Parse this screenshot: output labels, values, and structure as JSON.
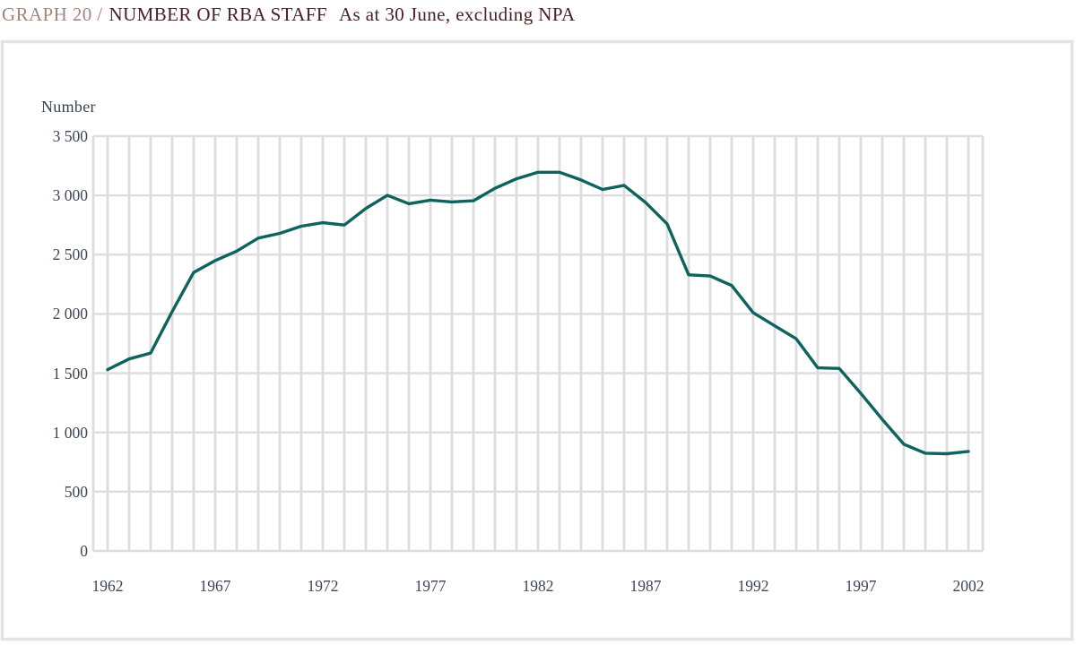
{
  "header": {
    "graph_label": "GRAPH 20 /",
    "title": "NUMBER OF RBA STAFF",
    "subtitle": "As at 30 June, excluding NPA"
  },
  "chart_data": {
    "type": "line",
    "title": "GRAPH 20 / NUMBER OF RBA STAFF  As at 30 June, excluding NPA",
    "ylabel": "Number",
    "ylim": [
      0,
      3500
    ],
    "y_ticks": [
      {
        "value": 3500,
        "label": "3 500"
      },
      {
        "value": 3000,
        "label": "3 000"
      },
      {
        "value": 2500,
        "label": "2 500"
      },
      {
        "value": 2000,
        "label": "2 000"
      },
      {
        "value": 1500,
        "label": "1 500"
      },
      {
        "value": 1000,
        "label": "1 000"
      },
      {
        "value": 500,
        "label": "500"
      },
      {
        "value": 0,
        "label": "0"
      }
    ],
    "x_ticks": [
      1962,
      1967,
      1972,
      1977,
      1982,
      1987,
      1992,
      1997,
      2002
    ],
    "grid": {
      "vertical": "every year",
      "horizontal": "every 500",
      "color": "#dcdce1"
    },
    "legend": "none",
    "series": [
      {
        "name": "Number of RBA staff",
        "x": [
          1962,
          1963,
          1964,
          1965,
          1966,
          1967,
          1968,
          1969,
          1970,
          1971,
          1972,
          1973,
          1974,
          1975,
          1976,
          1977,
          1978,
          1979,
          1980,
          1981,
          1982,
          1983,
          1984,
          1985,
          1986,
          1987,
          1988,
          1989,
          1990,
          1991,
          1992,
          1993,
          1994,
          1995,
          1996,
          1997,
          1998,
          1999,
          2000,
          2001,
          2002
        ],
        "values": [
          1530,
          1620,
          1670,
          2020,
          2350,
          2450,
          2530,
          2640,
          2680,
          2740,
          2770,
          2750,
          2890,
          3000,
          2930,
          2960,
          2945,
          2955,
          3060,
          3140,
          3195,
          3195,
          3130,
          3050,
          3085,
          2940,
          2760,
          2330,
          2320,
          2240,
          2010,
          1900,
          1790,
          1545,
          1540,
          1330,
          1110,
          900,
          825,
          820,
          840
        ]
      }
    ]
  },
  "colors": {
    "line": "#0f635d",
    "grid": "#dcdce1",
    "frame": "#e3e3e7",
    "graph_label_text": "#a1867c",
    "title_text": "#4a2123",
    "axis_text": "#3e4657"
  }
}
